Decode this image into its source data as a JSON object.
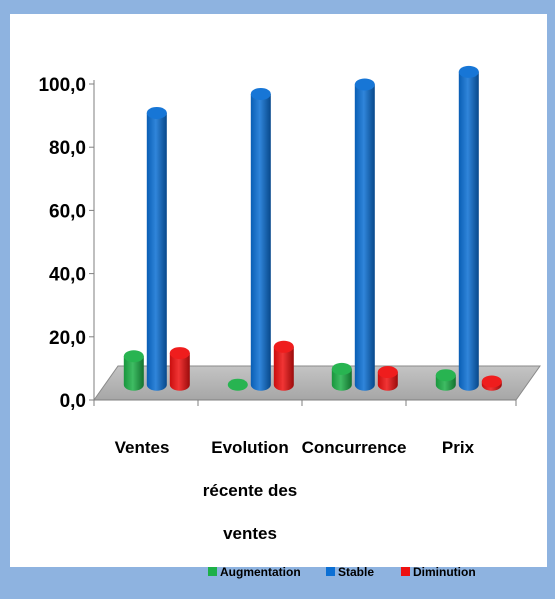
{
  "chart_data": {
    "type": "bar",
    "categories": [
      [
        "Ventes"
      ],
      [
        "Evolution",
        "récente des",
        "ventes"
      ],
      [
        "Concurrence"
      ],
      [
        "Prix"
      ]
    ],
    "series": [
      {
        "name": "Augmentation",
        "color": "#1db048",
        "values": [
          9.0,
          0.0,
          5.0,
          3.0
        ]
      },
      {
        "name": "Stable",
        "color": "#0b6fd4",
        "values": [
          86.0,
          92.0,
          95.0,
          99.0
        ]
      },
      {
        "name": "Diminution",
        "color": "#ee1111",
        "values": [
          10.0,
          12.0,
          4.0,
          1.0
        ]
      }
    ],
    "y_ticks": [
      "0,0",
      "20,0",
      "40,0",
      "60,0",
      "80,0",
      "100,0"
    ],
    "ylim": [
      0,
      100
    ],
    "legend_position": "bottom",
    "style": "3d-cylinder"
  }
}
